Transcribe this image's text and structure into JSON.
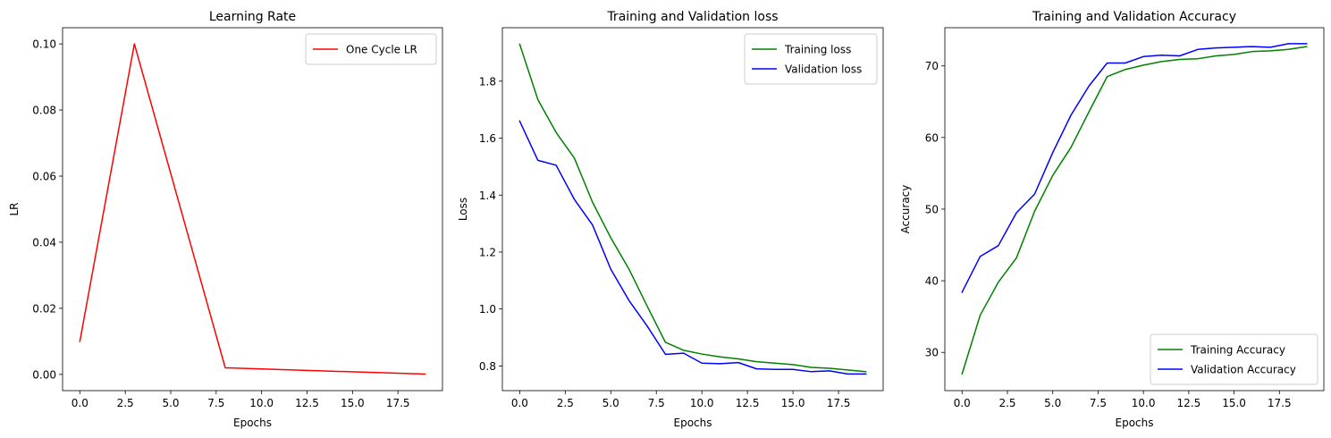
{
  "chart_data": [
    {
      "type": "line",
      "title": "Learning Rate",
      "xlabel": "Epochs",
      "ylabel": "LR",
      "xlim": [
        -0.95,
        19.95
      ],
      "ylim": [
        -0.0049,
        0.1049
      ],
      "xticks": [
        0.0,
        2.5,
        5.0,
        7.5,
        10.0,
        12.5,
        15.0,
        17.5
      ],
      "xtick_labels": [
        "0.0",
        "2.5",
        "5.0",
        "7.5",
        "10.0",
        "12.5",
        "15.0",
        "17.5"
      ],
      "yticks": [
        0.0,
        0.02,
        0.04,
        0.06,
        0.08,
        0.1
      ],
      "ytick_labels": [
        "0.00",
        "0.02",
        "0.04",
        "0.06",
        "0.08",
        "0.10"
      ],
      "legend_position": "top-right",
      "grid": false,
      "series": [
        {
          "name": "One Cycle LR",
          "color": "#ff0000",
          "x": [
            0,
            3,
            8,
            19
          ],
          "y": [
            0.01,
            0.1,
            0.002,
            0.0001
          ]
        }
      ]
    },
    {
      "type": "line",
      "title": "Training and Validation loss",
      "xlabel": "Epochs",
      "ylabel": "Loss",
      "xlim": [
        -0.95,
        19.95
      ],
      "ylim": [
        0.7135,
        1.9877
      ],
      "xticks": [
        0.0,
        2.5,
        5.0,
        7.5,
        10.0,
        12.5,
        15.0,
        17.5
      ],
      "xtick_labels": [
        "0.0",
        "2.5",
        "5.0",
        "7.5",
        "10.0",
        "12.5",
        "15.0",
        "17.5"
      ],
      "yticks": [
        0.8,
        1.0,
        1.2,
        1.4,
        1.6,
        1.8
      ],
      "ytick_labels": [
        "0.8",
        "1.0",
        "1.2",
        "1.4",
        "1.6",
        "1.8"
      ],
      "legend_position": "top-right",
      "grid": false,
      "series": [
        {
          "name": "Training loss",
          "color": "#008000",
          "x": [
            0,
            1,
            2,
            3,
            4,
            5,
            6,
            7,
            8,
            9,
            10,
            11,
            12,
            13,
            14,
            15,
            16,
            17,
            18,
            19
          ],
          "y": [
            1.93,
            1.735,
            1.62,
            1.53,
            1.375,
            1.25,
            1.14,
            1.01,
            0.883,
            0.855,
            0.842,
            0.832,
            0.825,
            0.815,
            0.81,
            0.805,
            0.795,
            0.792,
            0.786,
            0.78
          ]
        },
        {
          "name": "Validation loss",
          "color": "#0000ff",
          "x": [
            0,
            1,
            2,
            3,
            4,
            5,
            6,
            7,
            8,
            9,
            10,
            11,
            12,
            13,
            14,
            15,
            16,
            17,
            18,
            19
          ],
          "y": [
            1.66,
            1.522,
            1.505,
            1.385,
            1.295,
            1.14,
            1.03,
            0.94,
            0.841,
            0.845,
            0.81,
            0.808,
            0.812,
            0.79,
            0.788,
            0.788,
            0.78,
            0.783,
            0.772,
            0.772
          ]
        }
      ]
    },
    {
      "type": "line",
      "title": "Training and Validation Accuracy",
      "xlabel": "Epochs",
      "ylabel": "Accuracy",
      "xlim": [
        -0.95,
        19.95
      ],
      "ylim": [
        24.66,
        75.33
      ],
      "xticks": [
        0.0,
        2.5,
        5.0,
        7.5,
        10.0,
        12.5,
        15.0,
        17.5
      ],
      "xtick_labels": [
        "0.0",
        "2.5",
        "5.0",
        "7.5",
        "10.0",
        "12.5",
        "15.0",
        "17.5"
      ],
      "yticks": [
        30,
        40,
        50,
        60,
        70
      ],
      "ytick_labels": [
        "30",
        "40",
        "50",
        "60",
        "70"
      ],
      "legend_position": "bottom-right",
      "grid": false,
      "series": [
        {
          "name": "Training Accuracy",
          "color": "#008000",
          "x": [
            0,
            1,
            2,
            3,
            4,
            5,
            6,
            7,
            8,
            9,
            10,
            11,
            12,
            13,
            14,
            15,
            16,
            17,
            18,
            19
          ],
          "y": [
            27.0,
            35.2,
            39.8,
            43.2,
            49.7,
            54.7,
            58.6,
            63.6,
            68.5,
            69.5,
            70.1,
            70.6,
            70.9,
            71.0,
            71.4,
            71.6,
            72.0,
            72.1,
            72.3,
            72.7
          ]
        },
        {
          "name": "Validation Accuracy",
          "color": "#0000ff",
          "x": [
            0,
            1,
            2,
            3,
            4,
            5,
            6,
            7,
            8,
            9,
            10,
            11,
            12,
            13,
            14,
            15,
            16,
            17,
            18,
            19
          ],
          "y": [
            38.4,
            43.4,
            44.9,
            49.5,
            52.1,
            57.9,
            63.1,
            67.2,
            70.4,
            70.4,
            71.3,
            71.5,
            71.4,
            72.3,
            72.5,
            72.6,
            72.7,
            72.6,
            73.1,
            73.1
          ]
        }
      ]
    }
  ]
}
